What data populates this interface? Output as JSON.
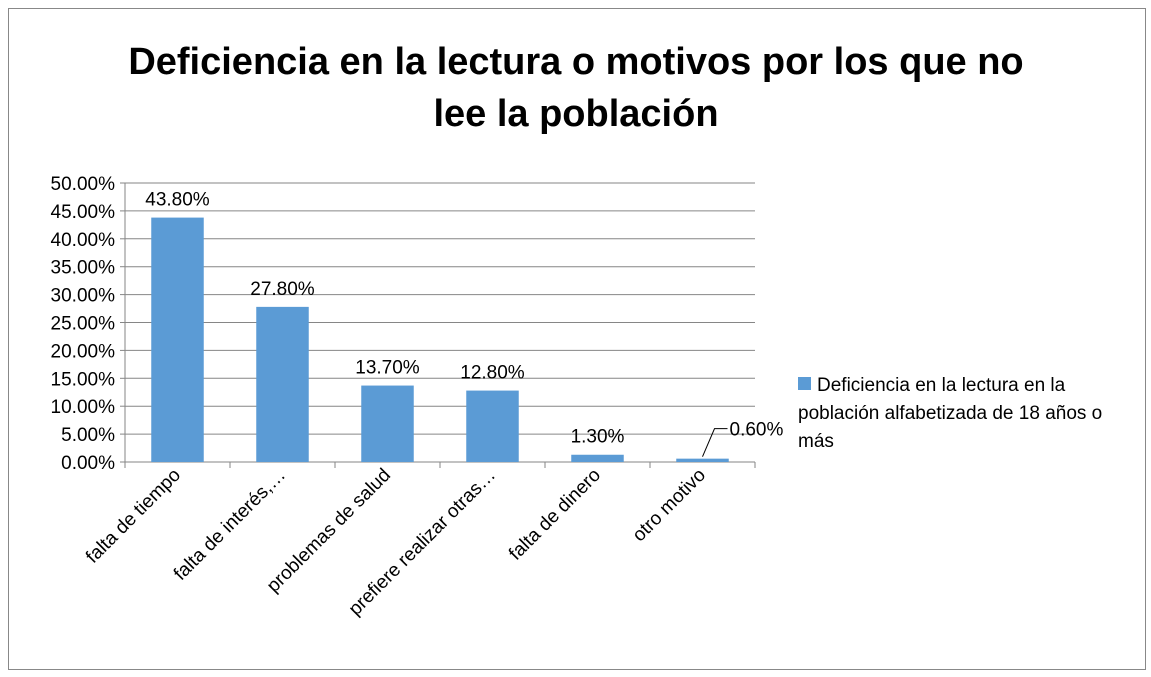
{
  "chart_data": {
    "type": "bar",
    "title": "Deficiencia en la lectura o motivos por los que no lee la población",
    "categories": [
      "falta de tiempo",
      "falta de interés,…",
      "problemas de salud",
      "prefiere realizar otras…",
      "falta de dinero",
      "otro motivo"
    ],
    "series": [
      {
        "name": "Deficiencia en la lectura en la población alfabetizada de 18 años o más",
        "color": "#5b9bd5",
        "values": [
          43.8,
          27.8,
          13.7,
          12.8,
          1.3,
          0.6
        ],
        "value_labels": [
          "43.80%",
          "27.80%",
          "13.70%",
          "12.80%",
          "1.30%",
          "0.60%"
        ]
      }
    ],
    "ylim": [
      0,
      50
    ],
    "yticks": [
      {
        "value": 0,
        "label": "0.00%"
      },
      {
        "value": 5,
        "label": "5.00%"
      },
      {
        "value": 10,
        "label": "10.00%"
      },
      {
        "value": 15,
        "label": "15.00%"
      },
      {
        "value": 20,
        "label": "20.00%"
      },
      {
        "value": 25,
        "label": "25.00%"
      },
      {
        "value": 30,
        "label": "30.00%"
      },
      {
        "value": 35,
        "label": "35.00%"
      },
      {
        "value": 40,
        "label": "40.00%"
      },
      {
        "value": 45,
        "label": "45.00%"
      },
      {
        "value": 50,
        "label": "50.00%"
      }
    ],
    "grid": true,
    "legend": "right"
  }
}
